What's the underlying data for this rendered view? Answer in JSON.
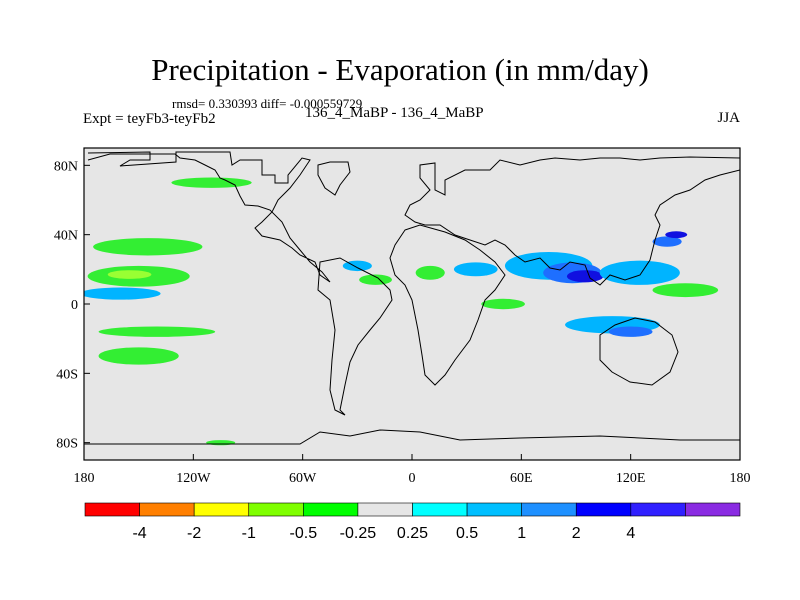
{
  "title": "Precipitation - Evaporation (in mm/day)",
  "stats_text": "rmsd= 0.330393 diff= -0.000559729",
  "experiment_label": "Expt = teyFb3-teyFb2",
  "period_label": "136_4_MaBP - 136_4_MaBP",
  "season_label": "JJA",
  "map": {
    "lon_ticks": [
      {
        "value": -180,
        "label": "180"
      },
      {
        "value": -120,
        "label": "120W"
      },
      {
        "value": -60,
        "label": "60W"
      },
      {
        "value": 0,
        "label": "0"
      },
      {
        "value": 60,
        "label": "60E"
      },
      {
        "value": 120,
        "label": "120E"
      },
      {
        "value": 180,
        "label": "180"
      }
    ],
    "lat_ticks": [
      {
        "value": 80,
        "label": "80N"
      },
      {
        "value": 40,
        "label": "40N"
      },
      {
        "value": 0,
        "label": "0"
      },
      {
        "value": -40,
        "label": "40S"
      },
      {
        "value": -80,
        "label": "80S"
      }
    ],
    "lon_range": [
      -180,
      180
    ],
    "lat_range": [
      -90,
      90
    ],
    "background_color": "#e6e6e6",
    "anomalies": [
      {
        "lon": -145,
        "lat": 33,
        "rx": 30,
        "ry": 5,
        "level": -0.5
      },
      {
        "lon": -150,
        "lat": 16,
        "rx": 28,
        "ry": 6,
        "level": -0.5
      },
      {
        "lon": -155,
        "lat": 17,
        "rx": 12,
        "ry": 2.5,
        "level": -1
      },
      {
        "lon": -160,
        "lat": 6,
        "rx": 22,
        "ry": 3.5,
        "level": 0.5
      },
      {
        "lon": -140,
        "lat": -16,
        "rx": 32,
        "ry": 3,
        "level": -0.5
      },
      {
        "lon": -150,
        "lat": -30,
        "rx": 22,
        "ry": 5,
        "level": -0.5
      },
      {
        "lon": -30,
        "lat": 22,
        "rx": 8,
        "ry": 3,
        "level": 0.5
      },
      {
        "lon": -20,
        "lat": 14,
        "rx": 9,
        "ry": 3,
        "level": -0.5
      },
      {
        "lon": 10,
        "lat": 18,
        "rx": 8,
        "ry": 4,
        "level": -0.5
      },
      {
        "lon": 35,
        "lat": 20,
        "rx": 12,
        "ry": 4,
        "level": 0.5
      },
      {
        "lon": 50,
        "lat": 0,
        "rx": 12,
        "ry": 3,
        "level": -0.5
      },
      {
        "lon": 75,
        "lat": 22,
        "rx": 24,
        "ry": 8,
        "level": 0.5
      },
      {
        "lon": 88,
        "lat": 18,
        "rx": 16,
        "ry": 6,
        "level": 1
      },
      {
        "lon": 95,
        "lat": 16,
        "rx": 10,
        "ry": 3.5,
        "level": 2
      },
      {
        "lon": 125,
        "lat": 18,
        "rx": 22,
        "ry": 7,
        "level": 0.5
      },
      {
        "lon": 110,
        "lat": -12,
        "rx": 26,
        "ry": 5,
        "level": 0.5
      },
      {
        "lon": 120,
        "lat": -16,
        "rx": 12,
        "ry": 3,
        "level": 1
      },
      {
        "lon": 140,
        "lat": 36,
        "rx": 8,
        "ry": 3,
        "level": 1
      },
      {
        "lon": 145,
        "lat": 40,
        "rx": 6,
        "ry": 2,
        "level": 2
      },
      {
        "lon": -110,
        "lat": 70,
        "rx": 22,
        "ry": 3,
        "level": -0.5
      },
      {
        "lon": -105,
        "lat": -80,
        "rx": 8,
        "ry": 1.5,
        "level": -0.5
      },
      {
        "lon": 150,
        "lat": 8,
        "rx": 18,
        "ry": 4,
        "level": -0.5
      }
    ]
  },
  "colorbar": {
    "colors": [
      "#ff0000",
      "#ff7f00",
      "#ffff00",
      "#7fff00",
      "#00ff00",
      "#e6e6e6",
      "#00ffff",
      "#00bfff",
      "#1e90ff",
      "#0000ff",
      "#3020ff",
      "#8a2be2"
    ],
    "labels": [
      "-4",
      "-2",
      "-1",
      "-0.5",
      "-0.25",
      "0.25",
      "0.5",
      "1",
      "2",
      "4"
    ]
  }
}
